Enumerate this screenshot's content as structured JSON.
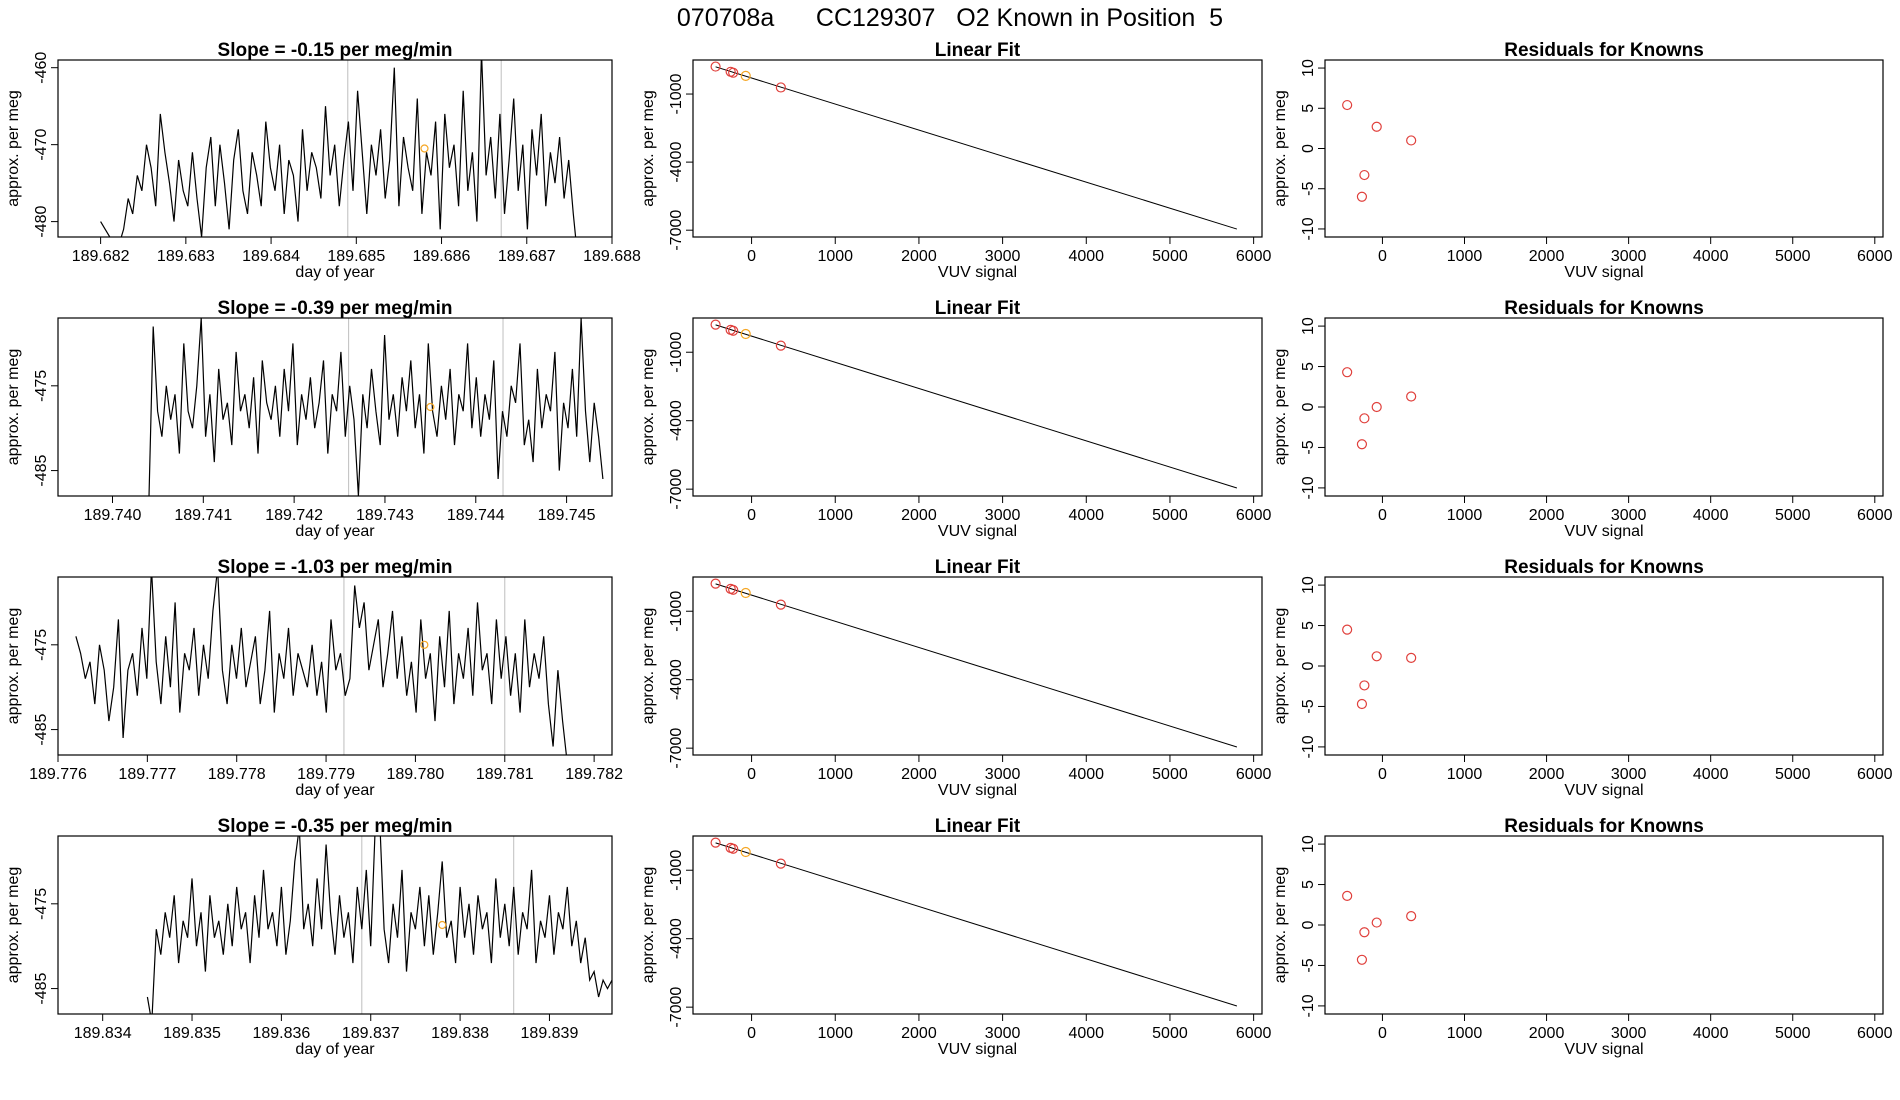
{
  "figure_title": "070708a      CC129307   O2 Known in Position  5",
  "colors": {
    "line": "#000000",
    "refline": "#bebebe",
    "point_red": "#e0403c",
    "point_orange": "#f5a623"
  },
  "chart_data": [
    {
      "type": "line",
      "title": "Slope =  -0.15  per meg/min",
      "xlabel": "day of year",
      "ylabel": "approx. per meg",
      "xlim": [
        189.6815,
        189.688
      ],
      "ylim": [
        -482,
        -459
      ],
      "xticks": [
        "189.682",
        "189.683",
        "189.684",
        "189.685",
        "189.686",
        "189.687",
        "189.688"
      ],
      "yticks": [
        "-460",
        "-470",
        "-480"
      ],
      "series_x_range": [
        189.682,
        189.6876
      ],
      "values": [
        -480,
        -481,
        -482,
        -484,
        -483,
        -481,
        -477,
        -479,
        -474,
        -476,
        -470,
        -473,
        -478,
        -466,
        -471,
        -475,
        -480,
        -472,
        -476,
        -478,
        -471,
        -477,
        -482,
        -473,
        -469,
        -478,
        -470,
        -475,
        -481,
        -472,
        -468,
        -476,
        -479,
        -471,
        -474,
        -478,
        -467,
        -473,
        -476,
        -470,
        -479,
        -472,
        -474,
        -480,
        -468,
        -476,
        -471,
        -473,
        -477,
        -465,
        -474,
        -470,
        -478,
        -472,
        -467,
        -476,
        -463,
        -471,
        -479,
        -470,
        -474,
        -468,
        -477,
        -472,
        -460,
        -478,
        -469,
        -473,
        -476,
        -464,
        -479,
        -471,
        -474,
        -467,
        -481,
        -466,
        -473,
        -470,
        -478,
        -463,
        -476,
        -471,
        -480,
        -458,
        -474,
        -469,
        -477,
        -466,
        -479,
        -472,
        -464,
        -476,
        -470,
        -481,
        -468,
        -474,
        -466,
        -478,
        -471,
        -475,
        -469,
        -477,
        -472,
        -479,
        -485
      ],
      "vlines": [
        189.6849,
        189.6867
      ],
      "highlight": {
        "x": 189.6858,
        "y": -470.5
      }
    },
    {
      "type": "scatter",
      "title": "Linear Fit",
      "xlabel": "VUV signal",
      "ylabel": "approx. per meg",
      "xlim": [
        -700,
        6100
      ],
      "ylim": [
        -7300,
        500
      ],
      "xticks": [
        "0",
        "1000",
        "2000",
        "3000",
        "4000",
        "5000",
        "6000"
      ],
      "yticks": [
        "-1000",
        "-4000",
        "-7000"
      ],
      "line": [
        [
          -430,
          200
        ],
        [
          5800,
          -6950
        ]
      ],
      "points": [
        {
          "x": -430,
          "y": 210,
          "color": "red"
        },
        {
          "x": -250,
          "y": -20,
          "color": "red"
        },
        {
          "x": -220,
          "y": -60,
          "color": "red"
        },
        {
          "x": -70,
          "y": -200,
          "color": "orange"
        },
        {
          "x": 350,
          "y": -710,
          "color": "red"
        }
      ]
    },
    {
      "type": "scatter",
      "title": "Residuals for Knowns",
      "xlabel": "VUV signal",
      "ylabel": "approx. per meg",
      "xlim": [
        -700,
        6100
      ],
      "ylim": [
        -11,
        11
      ],
      "xticks": [
        "0",
        "1000",
        "2000",
        "3000",
        "4000",
        "5000",
        "6000"
      ],
      "yticks": [
        "10",
        "5",
        "0",
        "-5",
        "-10"
      ],
      "points": [
        {
          "x": -430,
          "y": 5.4,
          "color": "red"
        },
        {
          "x": -250,
          "y": -6.0,
          "color": "red"
        },
        {
          "x": -220,
          "y": -3.3,
          "color": "red"
        },
        {
          "x": -70,
          "y": 2.7,
          "color": "red"
        },
        {
          "x": 350,
          "y": 1.0,
          "color": "red"
        }
      ]
    },
    {
      "type": "line",
      "title": "Slope =  -0.39  per meg/min",
      "xlabel": "day of year",
      "ylabel": "approx. per meg",
      "xlim": [
        189.7394,
        189.7455
      ],
      "ylim": [
        -488,
        -467
      ],
      "xticks": [
        "189.740",
        "189.741",
        "189.742",
        "189.743",
        "189.744",
        "189.745"
      ],
      "yticks": [
        "-475",
        "-485"
      ],
      "series_x_range": [
        189.7404,
        189.7454
      ],
      "values": [
        -489,
        -468,
        -478,
        -481,
        -475,
        -479,
        -476,
        -483,
        -470,
        -478,
        -480,
        -475,
        -467,
        -481,
        -476,
        -484,
        -473,
        -479,
        -477,
        -482,
        -471,
        -478,
        -476,
        -480,
        -474,
        -483,
        -472,
        -477,
        -479,
        -475,
        -481,
        -473,
        -478,
        -470,
        -482,
        -476,
        -479,
        -474,
        -480,
        -477,
        -472,
        -483,
        -476,
        -478,
        -471,
        -481,
        -475,
        -479,
        -488,
        -476,
        -480,
        -473,
        -478,
        -482,
        -469,
        -479,
        -476,
        -481,
        -474,
        -478,
        -472,
        -480,
        -476,
        -483,
        -470,
        -478,
        -481,
        -475,
        -479,
        -473,
        -482,
        -476,
        -478,
        -470,
        -480,
        -474,
        -481,
        -476,
        -479,
        -472,
        -486,
        -478,
        -481,
        -475,
        -477,
        -470,
        -482,
        -479,
        -484,
        -473,
        -480,
        -476,
        -478,
        -471,
        -485,
        -477,
        -480,
        -473,
        -481,
        -467,
        -478,
        -484,
        -477,
        -481,
        -486
      ],
      "vlines": [
        189.7426,
        189.7443
      ],
      "highlight": {
        "x": 189.7435,
        "y": -477.5
      }
    },
    {
      "type": "scatter",
      "title": "Linear Fit",
      "xlabel": "VUV signal",
      "ylabel": "approx. per meg",
      "xlim": [
        -700,
        6100
      ],
      "ylim": [
        -7300,
        500
      ],
      "xticks": [
        "0",
        "1000",
        "2000",
        "3000",
        "4000",
        "5000",
        "6000"
      ],
      "yticks": [
        "-1000",
        "-4000",
        "-7000"
      ],
      "line": [
        [
          -430,
          200
        ],
        [
          5800,
          -6950
        ]
      ],
      "points": [
        {
          "x": -430,
          "y": 210,
          "color": "red"
        },
        {
          "x": -250,
          "y": -20,
          "color": "red"
        },
        {
          "x": -220,
          "y": -60,
          "color": "red"
        },
        {
          "x": -70,
          "y": -200,
          "color": "orange"
        },
        {
          "x": 350,
          "y": -710,
          "color": "red"
        }
      ]
    },
    {
      "type": "scatter",
      "title": "Residuals for Knowns",
      "xlabel": "VUV signal",
      "ylabel": "approx. per meg",
      "xlim": [
        -700,
        6100
      ],
      "ylim": [
        -11,
        11
      ],
      "xticks": [
        "0",
        "1000",
        "2000",
        "3000",
        "4000",
        "5000",
        "6000"
      ],
      "yticks": [
        "10",
        "5",
        "0",
        "-5",
        "-10"
      ],
      "points": [
        {
          "x": -430,
          "y": 4.3,
          "color": "red"
        },
        {
          "x": -250,
          "y": -4.6,
          "color": "red"
        },
        {
          "x": -220,
          "y": -1.4,
          "color": "red"
        },
        {
          "x": -70,
          "y": 0.0,
          "color": "red"
        },
        {
          "x": 350,
          "y": 1.3,
          "color": "red"
        }
      ]
    },
    {
      "type": "line",
      "title": "Slope =  -1.03  per meg/min",
      "xlabel": "day of year",
      "ylabel": "approx. per meg",
      "xlim": [
        189.776,
        189.7822
      ],
      "ylim": [
        -488,
        -467
      ],
      "xticks": [
        "189.776",
        "189.777",
        "189.778",
        "189.779",
        "189.780",
        "189.781",
        "189.782"
      ],
      "yticks": [
        "-475",
        "-485"
      ],
      "series_x_range": [
        189.7762,
        189.7817
      ],
      "values": [
        -474,
        -476,
        -479,
        -477,
        -482,
        -475,
        -478,
        -484,
        -480,
        -472,
        -486,
        -478,
        -476,
        -481,
        -473,
        -479,
        -466,
        -477,
        -482,
        -474,
        -480,
        -470,
        -483,
        -476,
        -478,
        -473,
        -481,
        -475,
        -479,
        -471,
        -466,
        -478,
        -482,
        -475,
        -479,
        -473,
        -480,
        -477,
        -474,
        -482,
        -478,
        -471,
        -483,
        -476,
        -479,
        -473,
        -481,
        -476,
        -478,
        -480,
        -475,
        -481,
        -477,
        -483,
        -472,
        -478,
        -476,
        -481,
        -479,
        -468,
        -473,
        -470,
        -478,
        -475,
        -472,
        -480,
        -476,
        -471,
        -479,
        -474,
        -481,
        -477,
        -483,
        -472,
        -479,
        -476,
        -484,
        -474,
        -480,
        -471,
        -482,
        -476,
        -479,
        -473,
        -481,
        -470,
        -478,
        -476,
        -482,
        -472,
        -479,
        -474,
        -481,
        -476,
        -483,
        -472,
        -480,
        -476,
        -479,
        -474,
        -482,
        -487,
        -478,
        -484,
        -489
      ],
      "vlines": [
        189.7792,
        189.781
      ],
      "highlight": {
        "x": 189.7801,
        "y": -475
      }
    },
    {
      "type": "scatter",
      "title": "Linear Fit",
      "xlabel": "VUV signal",
      "ylabel": "approx. per meg",
      "xlim": [
        -700,
        6100
      ],
      "ylim": [
        -7300,
        500
      ],
      "xticks": [
        "0",
        "1000",
        "2000",
        "3000",
        "4000",
        "5000",
        "6000"
      ],
      "yticks": [
        "-1000",
        "-4000",
        "-7000"
      ],
      "line": [
        [
          -430,
          200
        ],
        [
          5800,
          -6950
        ]
      ],
      "points": [
        {
          "x": -430,
          "y": 210,
          "color": "red"
        },
        {
          "x": -250,
          "y": -20,
          "color": "red"
        },
        {
          "x": -220,
          "y": -60,
          "color": "red"
        },
        {
          "x": -70,
          "y": -200,
          "color": "orange"
        },
        {
          "x": 350,
          "y": -710,
          "color": "red"
        }
      ]
    },
    {
      "type": "scatter",
      "title": "Residuals for Knowns",
      "xlabel": "VUV signal",
      "ylabel": "approx. per meg",
      "xlim": [
        -700,
        6100
      ],
      "ylim": [
        -11,
        11
      ],
      "xticks": [
        "0",
        "1000",
        "2000",
        "3000",
        "4000",
        "5000",
        "6000"
      ],
      "yticks": [
        "10",
        "5",
        "0",
        "-5",
        "-10"
      ],
      "points": [
        {
          "x": -430,
          "y": 4.5,
          "color": "red"
        },
        {
          "x": -250,
          "y": -4.7,
          "color": "red"
        },
        {
          "x": -220,
          "y": -2.4,
          "color": "red"
        },
        {
          "x": -70,
          "y": 1.2,
          "color": "red"
        },
        {
          "x": 350,
          "y": 1.0,
          "color": "red"
        }
      ]
    },
    {
      "type": "line",
      "title": "Slope =  -0.35  per meg/min",
      "xlabel": "day of year",
      "ylabel": "approx. per meg",
      "xlim": [
        189.8335,
        189.8397
      ],
      "ylim": [
        -488,
        -467
      ],
      "xticks": [
        "189.834",
        "189.835",
        "189.836",
        "189.837",
        "189.838",
        "189.839"
      ],
      "yticks": [
        "-475",
        "-485"
      ],
      "series_x_range": [
        189.8345,
        189.8397
      ],
      "values": [
        -486,
        -489,
        -478,
        -481,
        -476,
        -479,
        -474,
        -482,
        -477,
        -479,
        -472,
        -480,
        -476,
        -483,
        -474,
        -479,
        -477,
        -481,
        -475,
        -480,
        -473,
        -478,
        -476,
        -482,
        -474,
        -479,
        -471,
        -478,
        -476,
        -480,
        -473,
        -481,
        -477,
        -470,
        -466,
        -478,
        -475,
        -480,
        -472,
        -478,
        -468,
        -476,
        -481,
        -474,
        -479,
        -476,
        -482,
        -473,
        -478,
        -471,
        -480,
        -466,
        -465,
        -478,
        -482,
        -475,
        -479,
        -471,
        -483,
        -476,
        -478,
        -473,
        -480,
        -474,
        -481,
        -476,
        -470,
        -479,
        -477,
        -482,
        -473,
        -479,
        -475,
        -481,
        -474,
        -478,
        -476,
        -482,
        -472,
        -479,
        -475,
        -480,
        -473,
        -481,
        -476,
        -478,
        -471,
        -482,
        -477,
        -479,
        -474,
        -481,
        -476,
        -478,
        -473,
        -480,
        -477,
        -482,
        -479,
        -484,
        -483,
        -486,
        -484,
        -485,
        -484
      ],
      "vlines": [
        189.8369,
        189.8386
      ],
      "highlight": {
        "x": 189.8378,
        "y": -477.5
      }
    },
    {
      "type": "scatter",
      "title": "Linear Fit",
      "xlabel": "VUV signal",
      "ylabel": "approx. per meg",
      "xlim": [
        -700,
        6100
      ],
      "ylim": [
        -7300,
        500
      ],
      "xticks": [
        "0",
        "1000",
        "2000",
        "3000",
        "4000",
        "5000",
        "6000"
      ],
      "yticks": [
        "-1000",
        "-4000",
        "-7000"
      ],
      "line": [
        [
          -430,
          200
        ],
        [
          5800,
          -6950
        ]
      ],
      "points": [
        {
          "x": -430,
          "y": 210,
          "color": "red"
        },
        {
          "x": -250,
          "y": -20,
          "color": "red"
        },
        {
          "x": -220,
          "y": -60,
          "color": "red"
        },
        {
          "x": -70,
          "y": -200,
          "color": "orange"
        },
        {
          "x": 350,
          "y": -710,
          "color": "red"
        }
      ]
    },
    {
      "type": "scatter",
      "title": "Residuals for Knowns",
      "xlabel": "VUV signal",
      "ylabel": "approx. per meg",
      "xlim": [
        -700,
        6100
      ],
      "ylim": [
        -11,
        11
      ],
      "xticks": [
        "0",
        "1000",
        "2000",
        "3000",
        "4000",
        "5000",
        "6000"
      ],
      "yticks": [
        "10",
        "5",
        "0",
        "-5",
        "-10"
      ],
      "points": [
        {
          "x": -430,
          "y": 3.6,
          "color": "red"
        },
        {
          "x": -250,
          "y": -4.3,
          "color": "red"
        },
        {
          "x": -220,
          "y": -0.9,
          "color": "red"
        },
        {
          "x": -70,
          "y": 0.3,
          "color": "red"
        },
        {
          "x": 350,
          "y": 1.1,
          "color": "red"
        }
      ]
    }
  ]
}
